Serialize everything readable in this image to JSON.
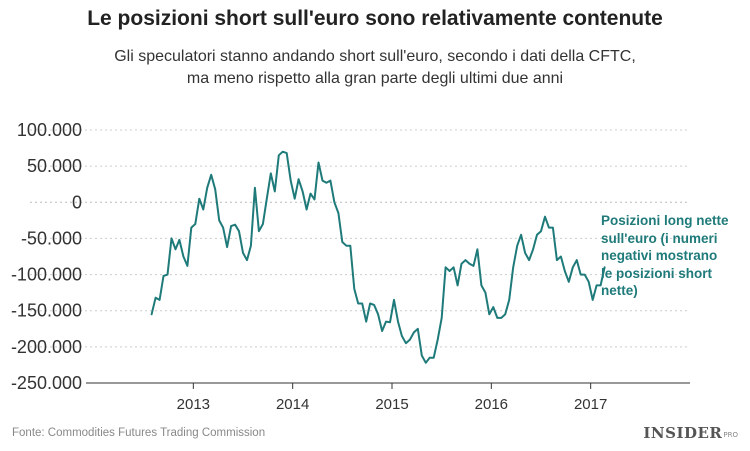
{
  "chart_data": {
    "type": "line",
    "title": "Le posizioni short sull'euro sono relativamente contenute",
    "subtitle_lines": [
      "Gli speculatori stanno andando short sull'euro, secondo i dati della CFTC,",
      "ma meno rispetto alla gran parte degli ultimi due anni"
    ],
    "xlabel": "",
    "ylabel": "",
    "ylim": [
      -250000,
      100000
    ],
    "xlim": [
      2012.0,
      2018.0
    ],
    "y_ticks": [
      100000,
      50000,
      0,
      -50000,
      -100000,
      -150000,
      -200000,
      -250000
    ],
    "y_tick_labels": [
      "100.000",
      "50.000",
      "0",
      "-50.000",
      "-100.000",
      "-150.000",
      "-200.000",
      "-250.000"
    ],
    "x_ticks": [
      2013,
      2014,
      2015,
      2016,
      2017
    ],
    "x_tick_labels": [
      "2013",
      "2014",
      "2015",
      "2016",
      "2017"
    ],
    "grid": true,
    "colors": {
      "line": "#1f7a7a",
      "grid": "#cccccc",
      "axis": "#333333"
    },
    "series": [
      {
        "name": "Posizioni long nette sull'euro",
        "x": [
          2012.58,
          2012.62,
          2012.66,
          2012.7,
          2012.74,
          2012.78,
          2012.82,
          2012.86,
          2012.9,
          2012.94,
          2012.98,
          2013.02,
          2013.06,
          2013.1,
          2013.14,
          2013.18,
          2013.22,
          2013.26,
          2013.3,
          2013.34,
          2013.38,
          2013.42,
          2013.46,
          2013.5,
          2013.54,
          2013.58,
          2013.62,
          2013.66,
          2013.7,
          2013.74,
          2013.78,
          2013.82,
          2013.86,
          2013.9,
          2013.94,
          2013.98,
          2014.02,
          2014.06,
          2014.1,
          2014.14,
          2014.18,
          2014.22,
          2014.26,
          2014.3,
          2014.34,
          2014.38,
          2014.42,
          2014.46,
          2014.5,
          2014.54,
          2014.58,
          2014.62,
          2014.66,
          2014.7,
          2014.74,
          2014.78,
          2014.82,
          2014.86,
          2014.9,
          2014.94,
          2014.98,
          2015.02,
          2015.06,
          2015.1,
          2015.14,
          2015.18,
          2015.22,
          2015.26,
          2015.3,
          2015.34,
          2015.38,
          2015.42,
          2015.46,
          2015.5,
          2015.54,
          2015.58,
          2015.62,
          2015.66,
          2015.7,
          2015.74,
          2015.78,
          2015.82,
          2015.86,
          2015.9,
          2015.94,
          2015.98,
          2016.02,
          2016.06,
          2016.1,
          2016.14,
          2016.18,
          2016.22,
          2016.26,
          2016.3,
          2016.34,
          2016.38,
          2016.42,
          2016.46,
          2016.5,
          2016.54,
          2016.58,
          2016.62,
          2016.66,
          2016.7,
          2016.74,
          2016.78,
          2016.82,
          2016.86,
          2016.9,
          2016.94,
          2016.98,
          2017.02,
          2017.06,
          2017.1,
          2017.14
        ],
        "values": [
          -155000,
          -132000,
          -135000,
          -102000,
          -100000,
          -50000,
          -65000,
          -52000,
          -75000,
          -88000,
          -35000,
          -30000,
          5000,
          -10000,
          20000,
          38000,
          18000,
          -25000,
          -35000,
          -62000,
          -33000,
          -31000,
          -40000,
          -70000,
          -80000,
          -60000,
          20000,
          -40000,
          -30000,
          5000,
          40000,
          15000,
          65000,
          70000,
          68000,
          30000,
          5000,
          32000,
          15000,
          -10000,
          12000,
          4000,
          55000,
          30000,
          27000,
          30000,
          0,
          -15000,
          -55000,
          -60000,
          -60000,
          -120000,
          -140000,
          -140000,
          -165000,
          -140000,
          -142000,
          -155000,
          -178000,
          -165000,
          -166000,
          -135000,
          -165000,
          -185000,
          -195000,
          -190000,
          -180000,
          -175000,
          -212000,
          -222000,
          -215000,
          -215000,
          -190000,
          -160000,
          -90000,
          -95000,
          -90000,
          -115000,
          -85000,
          -80000,
          -85000,
          -88000,
          -65000,
          -115000,
          -125000,
          -155000,
          -145000,
          -160000,
          -160000,
          -155000,
          -135000,
          -90000,
          -60000,
          -45000,
          -70000,
          -80000,
          -65000,
          -45000,
          -40000,
          -20000,
          -35000,
          -35000,
          -80000,
          -75000,
          -95000,
          -110000,
          -90000,
          -80000,
          -100000,
          -100000,
          -110000,
          -135000,
          -115000,
          -115000,
          -90000
        ]
      }
    ],
    "annotation_lines": [
      "Posizioni long nette",
      "sull'euro (i numeri",
      "negativi mostrano",
      "le posizioni short",
      "nette)"
    ]
  },
  "footer": {
    "source": "Fonte: Commodities Futures Trading Commission",
    "logo_text": "INSIDER",
    "logo_suffix": "PRO"
  }
}
